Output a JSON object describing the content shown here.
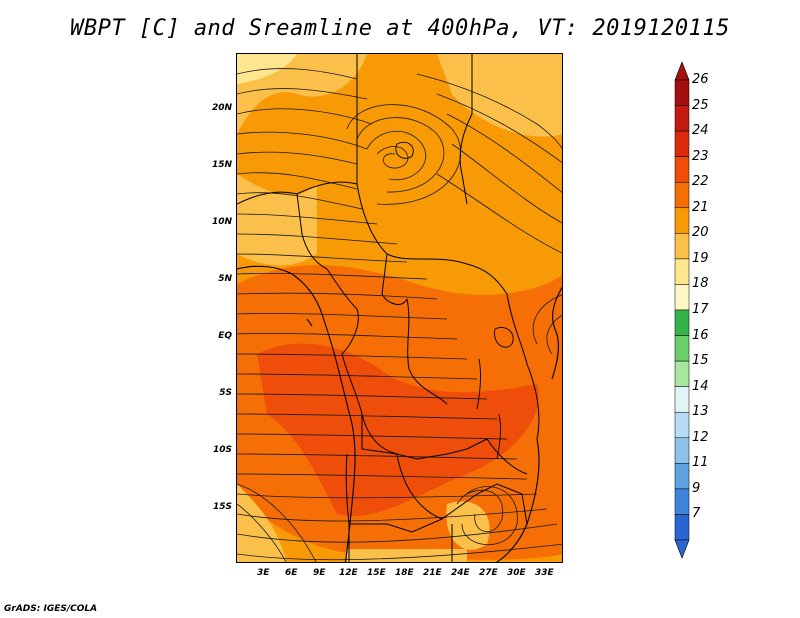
{
  "title": "WBPT [C] and Sreamline at 400hPa, VT: 2019120115",
  "credit": "GrADS: IGES/COLA",
  "lat_labels": [
    "20N",
    "15N",
    "10N",
    "5N",
    "EQ",
    "5S",
    "10S",
    "15S"
  ],
  "lon_labels": [
    "3E",
    "6E",
    "9E",
    "12E",
    "15E",
    "18E",
    "21E",
    "24E",
    "27E",
    "30E",
    "33E"
  ],
  "colorbar": {
    "labels": [
      "26",
      "25",
      "24",
      "23",
      "22",
      "21",
      "20",
      "19",
      "18",
      "17",
      "16",
      "15",
      "14",
      "13",
      "12",
      "11",
      "9",
      "7"
    ],
    "colors": [
      "#a50f0f",
      "#c21a0e",
      "#dc2a0c",
      "#ef4d0a",
      "#f56f06",
      "#f79a06",
      "#fbc04a",
      "#fde68e",
      "#fff8c4",
      "#34b34a",
      "#6acf6a",
      "#a8e6a0",
      "#e1f5f7",
      "#b6ddf5",
      "#8cc3ec",
      "#5ea3e2",
      "#3f85dc",
      "#2a66d2"
    ],
    "top_arrow_color": "#a50f0f",
    "bottom_arrow_color": "#2a66d2"
  },
  "palette": {
    "band_19_20": "#fde68e",
    "band_20_21": "#fbc04a",
    "band_21_22": "#f79a06",
    "band_22_23": "#f56f06",
    "band_23_24": "#ef4d0a"
  }
}
